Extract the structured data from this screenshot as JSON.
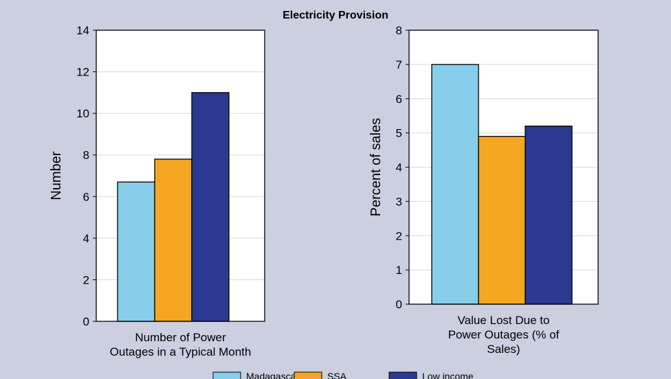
{
  "title": "Electricity Provision",
  "legend": {
    "placement": "bottom",
    "items": [
      {
        "label": "Madagascar",
        "color": "#87ceeb"
      },
      {
        "label": "SSA",
        "color": "#f5a623"
      },
      {
        "label": "Low income",
        "color": "#2b3990"
      }
    ]
  },
  "chart_data": [
    {
      "type": "bar",
      "categories": [
        "Number of Power Outages in a Typical Month"
      ],
      "category_lines": [
        "Number of Power",
        "Outages in a Typical Month"
      ],
      "ylabel": "Number",
      "ylim": [
        0,
        14
      ],
      "yticks": [
        0,
        2,
        4,
        6,
        8,
        10,
        12,
        14
      ],
      "series": [
        {
          "name": "Madagascar",
          "values": [
            6.7
          ]
        },
        {
          "name": "SSA",
          "values": [
            7.8
          ]
        },
        {
          "name": "Low income",
          "values": [
            11.0
          ]
        }
      ]
    },
    {
      "type": "bar",
      "categories": [
        "Value Lost Due to Power Outages (% of Sales)"
      ],
      "category_lines": [
        "Value Lost Due to",
        "Power Outages (% of",
        "Sales)"
      ],
      "ylabel": "Percent of sales",
      "ylim": [
        0,
        8
      ],
      "yticks": [
        0,
        1,
        2,
        3,
        4,
        5,
        6,
        7,
        8
      ],
      "series": [
        {
          "name": "Madagascar",
          "values": [
            7.0
          ]
        },
        {
          "name": "SSA",
          "values": [
            4.9
          ]
        },
        {
          "name": "Low income",
          "values": [
            5.2
          ]
        }
      ]
    }
  ]
}
